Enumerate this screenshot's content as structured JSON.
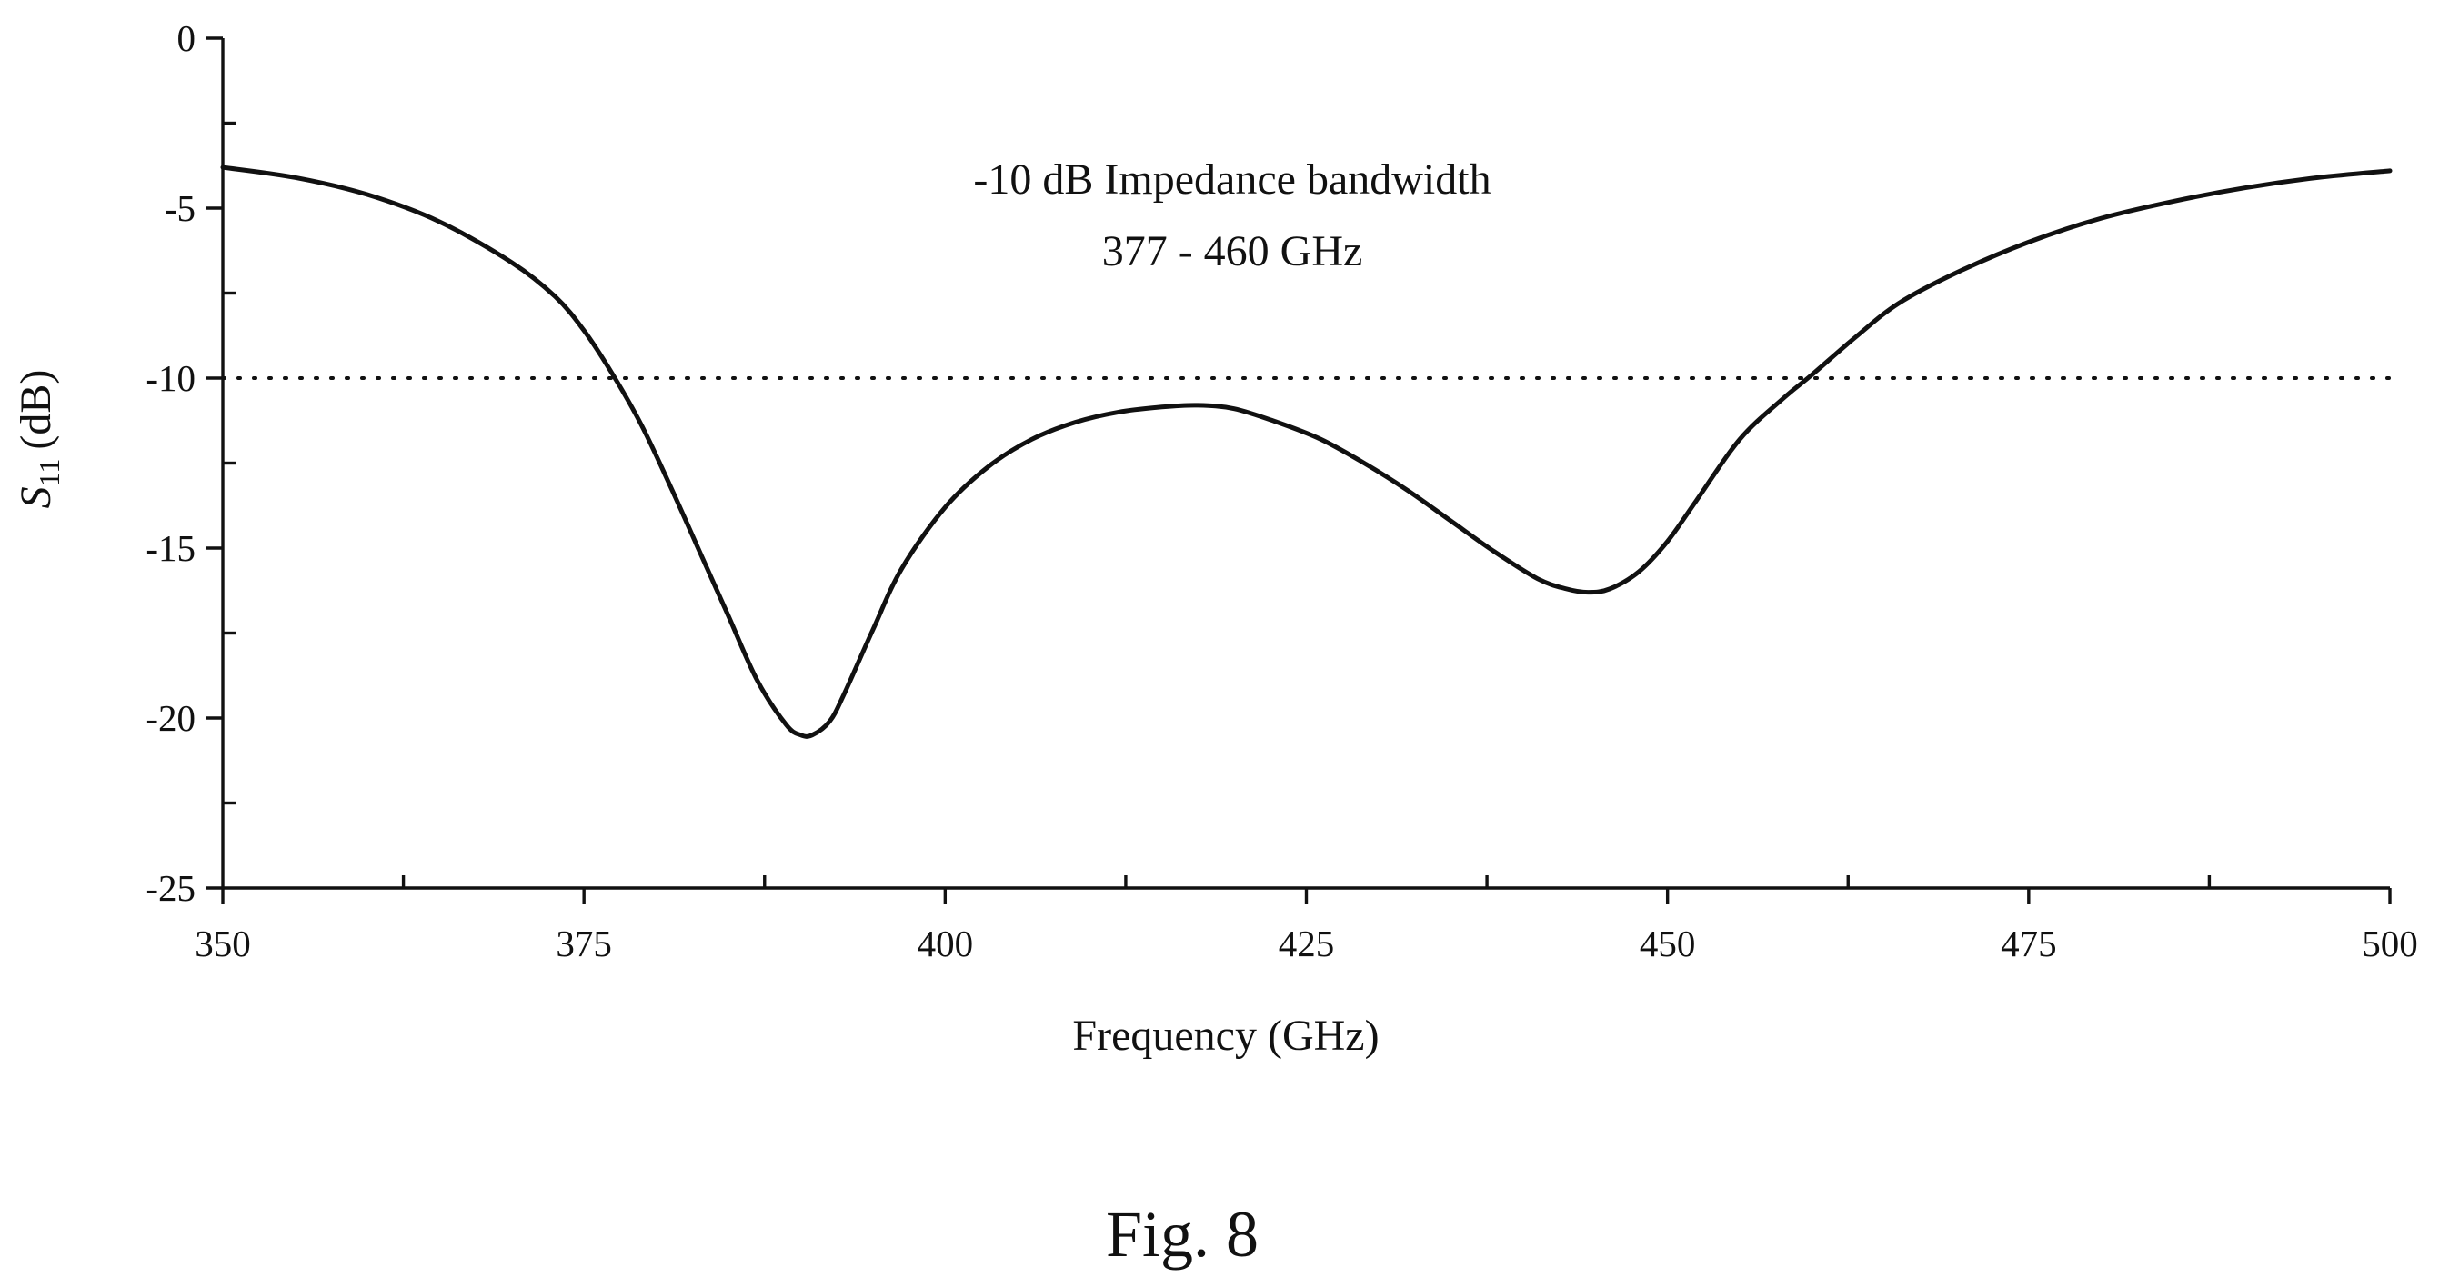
{
  "figure": {
    "caption": "Fig. 8"
  },
  "chart_data": {
    "type": "line",
    "title": "",
    "xlabel": "Frequency (GHz)",
    "ylabel": {
      "symbol": "S",
      "subscript": "11",
      "unit": "(dB)"
    },
    "xlim": [
      350,
      500
    ],
    "ylim": [
      -25,
      0
    ],
    "x_ticks": [
      "350",
      "375",
      "400",
      "425",
      "450",
      "475",
      "500"
    ],
    "y_ticks": [
      "0",
      "-5",
      "-10",
      "-15",
      "-20",
      "-25"
    ],
    "x_minor_tick_step": 12.5,
    "y_minor_tick_step": 2.5,
    "grid": false,
    "annotation": {
      "lines": [
        "-10 dB Impedance bandwidth",
        "377 - 460 GHz"
      ]
    },
    "reference_line": {
      "y": -10,
      "style": "dotted"
    },
    "series": [
      {
        "x": [
          350,
          355,
          360,
          365,
          370,
          373,
          375,
          377,
          379,
          381,
          383,
          385,
          387,
          389,
          390,
          390.8,
          392,
          393,
          395,
          397,
          400,
          403,
          406,
          409,
          412,
          415,
          417.5,
          420,
          423,
          426,
          429,
          432,
          435,
          438,
          441,
          443,
          444.5,
          446,
          448,
          450,
          452,
          455,
          458,
          460,
          463,
          466,
          470,
          475,
          480,
          485,
          490,
          495,
          500
        ],
        "y": [
          -3.8,
          -4.1,
          -4.6,
          -5.4,
          -6.6,
          -7.6,
          -8.6,
          -9.9,
          -11.4,
          -13.2,
          -15.1,
          -17.0,
          -18.9,
          -20.2,
          -20.5,
          -20.5,
          -20.1,
          -19.3,
          -17.4,
          -15.6,
          -13.8,
          -12.6,
          -11.8,
          -11.3,
          -11.0,
          -10.85,
          -10.8,
          -10.9,
          -11.3,
          -11.8,
          -12.5,
          -13.3,
          -14.2,
          -15.1,
          -15.9,
          -16.2,
          -16.3,
          -16.2,
          -15.7,
          -14.8,
          -13.6,
          -11.8,
          -10.6,
          -9.9,
          -8.8,
          -7.8,
          -6.9,
          -6.0,
          -5.3,
          -4.8,
          -4.4,
          -4.1,
          -3.9
        ]
      }
    ]
  }
}
